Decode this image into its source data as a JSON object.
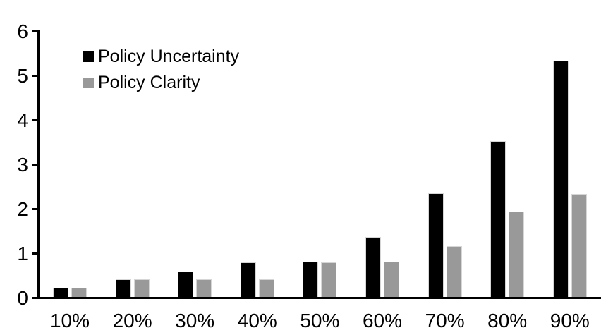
{
  "chart_data": {
    "type": "bar",
    "title": "",
    "xlabel": "",
    "ylabel": "",
    "categories": [
      "10%",
      "20%",
      "30%",
      "40%",
      "50%",
      "60%",
      "70%",
      "80%",
      "90%"
    ],
    "series": [
      {
        "name": "Policy Uncertainty",
        "color": "#000000",
        "values": [
          0.19,
          0.38,
          0.56,
          0.76,
          0.78,
          1.33,
          2.32,
          3.5,
          5.3
        ]
      },
      {
        "name": "Policy Clarity",
        "color": "#999999",
        "values": [
          0.19,
          0.38,
          0.38,
          0.38,
          0.76,
          0.77,
          1.13,
          1.9,
          2.3
        ]
      }
    ],
    "ylim": [
      0,
      6
    ],
    "yticks": [
      0,
      1,
      2,
      3,
      4,
      5,
      6
    ],
    "grid": false,
    "legend_position": "top-left-inside",
    "background_color": "#ffffff",
    "axis_color": "#000000"
  }
}
